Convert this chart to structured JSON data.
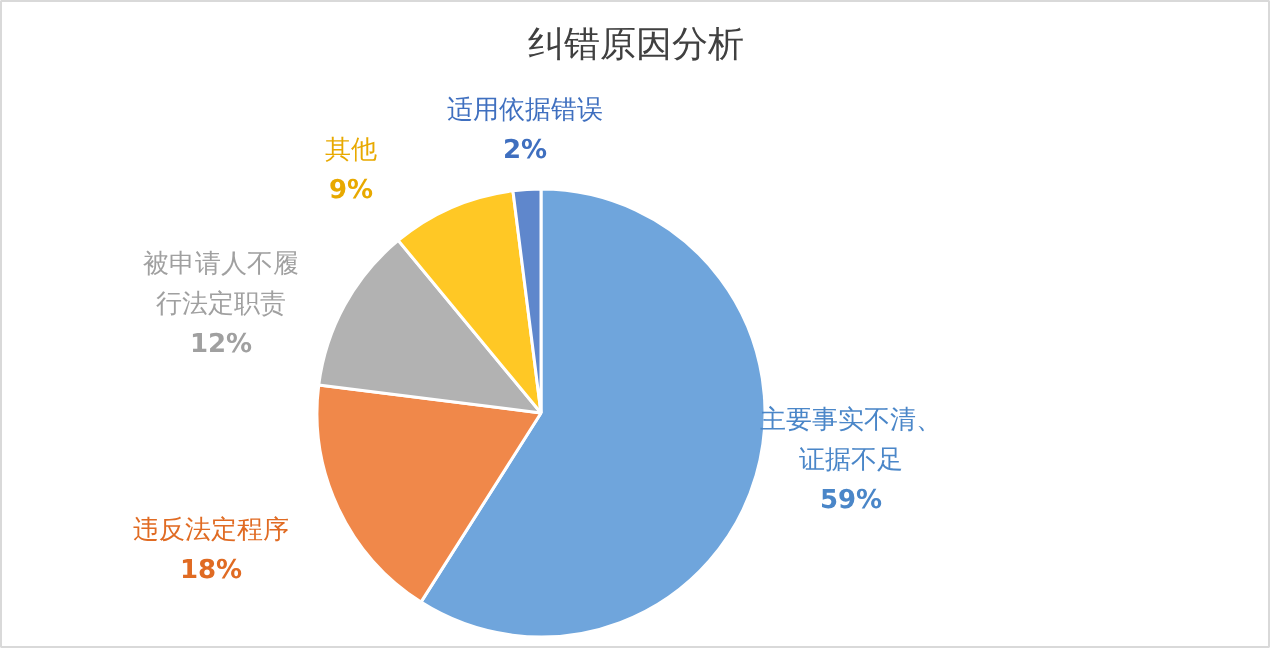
{
  "chart_data": {
    "type": "pie",
    "title": "纠错原因分析",
    "categories": [
      "主要事实不清、证据不足",
      "违反法定程序",
      "被申请人不履行法定职责",
      "其他",
      "适用依据错误"
    ],
    "values": [
      59,
      18,
      12,
      9,
      2
    ],
    "colors": [
      "#6fa5dc",
      "#f0884a",
      "#b2b2b2",
      "#ffc825",
      "#5f87cc"
    ],
    "value_labels": [
      "59%",
      "18%",
      "12%",
      "9%",
      "2%"
    ]
  }
}
